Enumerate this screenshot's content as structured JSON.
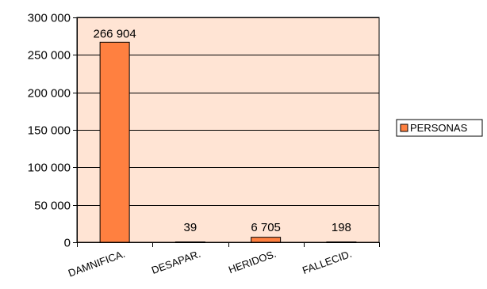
{
  "chart_data": {
    "type": "bar",
    "categories": [
      "DAMNIFICA.",
      "DESAPAR.",
      "HERIDOS.",
      "FALLECID."
    ],
    "series": [
      {
        "name": "PERSONAS",
        "values": [
          266904,
          39,
          6705,
          198
        ],
        "color": "#ff8040"
      }
    ],
    "data_labels": [
      "266 904",
      "39",
      "6 705",
      "198"
    ],
    "yticks": [
      0,
      50000,
      100000,
      150000,
      200000,
      250000,
      300000
    ],
    "ytick_labels": [
      "0",
      "50 000",
      "100 000",
      "150 000",
      "200 000",
      "250 000",
      "300 000"
    ],
    "ylim": [
      0,
      300000
    ],
    "grid": true,
    "legend_position": "right",
    "plot_background": "#ffe4d4",
    "bar_outline": "#000000"
  }
}
